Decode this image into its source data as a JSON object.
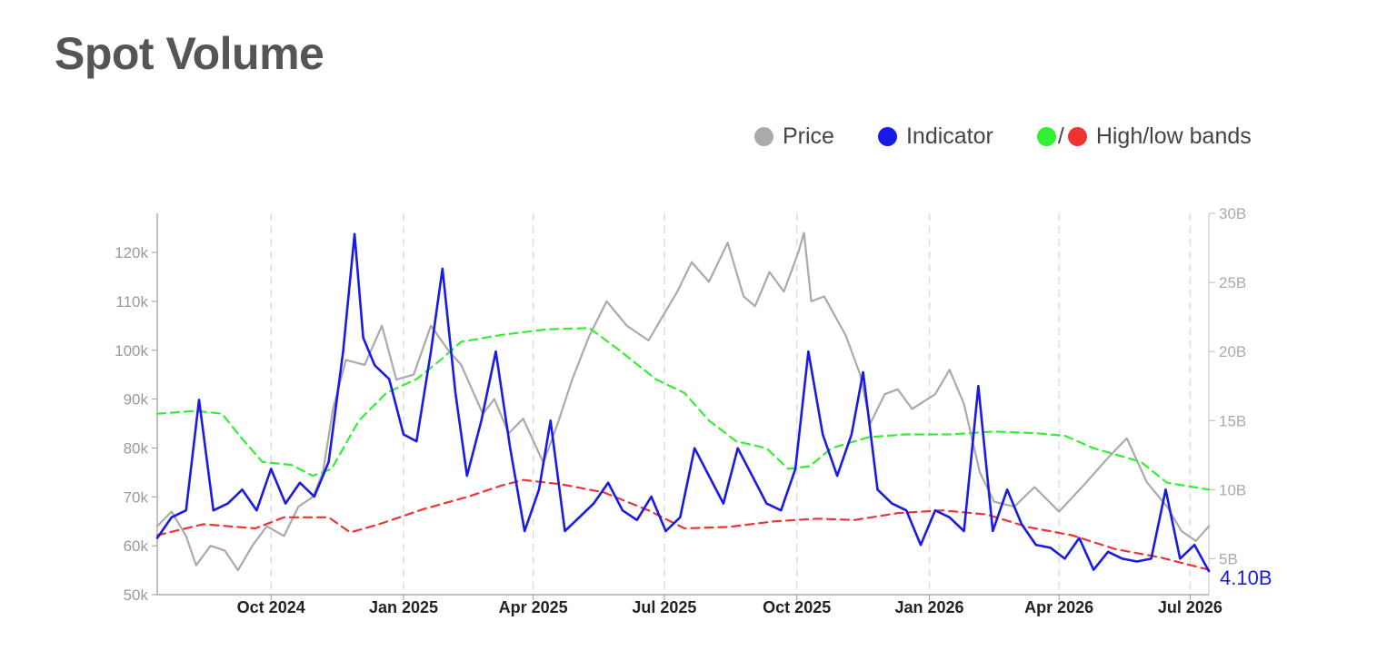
{
  "title": "Spot Volume",
  "legend": [
    {
      "label": "Price",
      "color": "#aaaaaa"
    },
    {
      "label": "Indicator",
      "color": "#1a1ae6"
    },
    {
      "label": "High/low bands",
      "colors": [
        "#33ee33",
        "#ee3333"
      ],
      "separator": "/"
    }
  ],
  "colors": {
    "price": "#aaaaaa",
    "indicator": "#1a1ae6",
    "high_band": "#33ee33",
    "low_band": "#ee3333",
    "grid": "#dddddd"
  },
  "chart_data": {
    "type": "line",
    "title": "Spot Volume",
    "x_range": [
      "2024-07-14",
      "2026-07-14"
    ],
    "x_ticks": [
      {
        "date": "2024-10-01",
        "label": "Oct 2024"
      },
      {
        "date": "2025-01-01",
        "label": "Jan 2025"
      },
      {
        "date": "2025-04-01",
        "label": "Apr 2025"
      },
      {
        "date": "2025-07-01",
        "label": "Jul 2025"
      },
      {
        "date": "2025-10-01",
        "label": "Oct 2025"
      },
      {
        "date": "2026-01-01",
        "label": "Jan 2026"
      },
      {
        "date": "2026-04-01",
        "label": "Apr 2026"
      },
      {
        "date": "2026-07-01",
        "label": "Jul 2026"
      }
    ],
    "left_axis": {
      "range": [
        50000,
        128000
      ],
      "ticks": [
        50000,
        60000,
        70000,
        80000,
        90000,
        100000,
        110000,
        120000
      ],
      "tick_labels": [
        "50k",
        "60k",
        "70k",
        "80k",
        "90k",
        "100k",
        "110k",
        "120k"
      ]
    },
    "right_axis": {
      "range": [
        2400000000,
        30000000000
      ],
      "ticks": [
        5000000000,
        10000000000,
        15000000000,
        20000000000,
        25000000000,
        30000000000
      ],
      "tick_labels": [
        "5B",
        "10B",
        "15B",
        "20B",
        "25B",
        "30B"
      ]
    },
    "vertical_grid": true,
    "horizontal_grid": false,
    "legend_position": "top-right",
    "last_value_label": "4.10B",
    "series": [
      {
        "name": "Price",
        "axis": "left",
        "color": "#aaaaaa",
        "style": "solid",
        "points": [
          [
            "2024-07-14",
            64000
          ],
          [
            "2024-07-24",
            67000
          ],
          [
            "2024-08-03",
            62000
          ],
          [
            "2024-08-10",
            56000
          ],
          [
            "2024-08-20",
            60000
          ],
          [
            "2024-08-30",
            59000
          ],
          [
            "2024-09-08",
            55000
          ],
          [
            "2024-09-18",
            60000
          ],
          [
            "2024-09-28",
            64000
          ],
          [
            "2024-10-10",
            62000
          ],
          [
            "2024-10-20",
            68000
          ],
          [
            "2024-10-30",
            70000
          ],
          [
            "2024-11-06",
            75000
          ],
          [
            "2024-11-13",
            88000
          ],
          [
            "2024-11-22",
            98000
          ],
          [
            "2024-12-05",
            97000
          ],
          [
            "2024-12-17",
            105000
          ],
          [
            "2024-12-27",
            94000
          ],
          [
            "2025-01-08",
            95000
          ],
          [
            "2025-01-20",
            105000
          ],
          [
            "2025-02-01",
            100000
          ],
          [
            "2025-02-10",
            97000
          ],
          [
            "2025-02-25",
            87000
          ],
          [
            "2025-03-05",
            90000
          ],
          [
            "2025-03-15",
            83000
          ],
          [
            "2025-03-25",
            86000
          ],
          [
            "2025-04-08",
            77000
          ],
          [
            "2025-04-18",
            85000
          ],
          [
            "2025-04-28",
            94000
          ],
          [
            "2025-05-10",
            103000
          ],
          [
            "2025-05-22",
            110000
          ],
          [
            "2025-06-05",
            105000
          ],
          [
            "2025-06-20",
            102000
          ],
          [
            "2025-06-30",
            107000
          ],
          [
            "2025-07-10",
            112000
          ],
          [
            "2025-07-20",
            118000
          ],
          [
            "2025-08-01",
            114000
          ],
          [
            "2025-08-14",
            122000
          ],
          [
            "2025-08-25",
            111000
          ],
          [
            "2025-09-02",
            109000
          ],
          [
            "2025-09-12",
            116000
          ],
          [
            "2025-09-22",
            112000
          ],
          [
            "2025-10-02",
            120000
          ],
          [
            "2025-10-06",
            124000
          ],
          [
            "2025-10-11",
            110000
          ],
          [
            "2025-10-20",
            111000
          ],
          [
            "2025-11-04",
            103000
          ],
          [
            "2025-11-14",
            95000
          ],
          [
            "2025-11-21",
            85000
          ],
          [
            "2025-12-01",
            91000
          ],
          [
            "2025-12-10",
            92000
          ],
          [
            "2025-12-20",
            88000
          ],
          [
            "2026-01-05",
            91000
          ],
          [
            "2026-01-15",
            96000
          ],
          [
            "2026-01-25",
            89000
          ],
          [
            "2026-02-05",
            75000
          ],
          [
            "2026-02-15",
            69000
          ],
          [
            "2026-03-01",
            68000
          ],
          [
            "2026-03-15",
            72000
          ],
          [
            "2026-04-01",
            67000
          ],
          [
            "2026-04-20",
            73000
          ],
          [
            "2026-05-05",
            78000
          ],
          [
            "2026-05-18",
            82000
          ],
          [
            "2026-06-01",
            73000
          ],
          [
            "2026-06-15",
            68000
          ],
          [
            "2026-06-25",
            63000
          ],
          [
            "2026-07-05",
            61000
          ],
          [
            "2026-07-14",
            64000
          ]
        ]
      },
      {
        "name": "Indicator",
        "axis": "right",
        "color": "#1a1ae6",
        "style": "solid",
        "points": [
          [
            "2024-07-14",
            6500000000
          ],
          [
            "2024-07-24",
            8000000000
          ],
          [
            "2024-08-03",
            8500000000
          ],
          [
            "2024-08-12",
            16500000000
          ],
          [
            "2024-08-22",
            8500000000
          ],
          [
            "2024-09-01",
            9000000000
          ],
          [
            "2024-09-11",
            10000000000
          ],
          [
            "2024-09-21",
            8500000000
          ],
          [
            "2024-10-01",
            11500000000
          ],
          [
            "2024-10-11",
            9000000000
          ],
          [
            "2024-10-21",
            10500000000
          ],
          [
            "2024-10-31",
            9500000000
          ],
          [
            "2024-11-10",
            12000000000
          ],
          [
            "2024-11-20",
            20000000000
          ],
          [
            "2024-11-28",
            28500000000
          ],
          [
            "2024-12-04",
            21000000000
          ],
          [
            "2024-12-12",
            19000000000
          ],
          [
            "2024-12-22",
            18000000000
          ],
          [
            "2025-01-01",
            14000000000
          ],
          [
            "2025-01-10",
            13500000000
          ],
          [
            "2025-01-20",
            20000000000
          ],
          [
            "2025-01-28",
            26000000000
          ],
          [
            "2025-02-06",
            17000000000
          ],
          [
            "2025-02-14",
            11000000000
          ],
          [
            "2025-02-24",
            15000000000
          ],
          [
            "2025-03-06",
            20000000000
          ],
          [
            "2025-03-16",
            13000000000
          ],
          [
            "2025-03-26",
            7000000000
          ],
          [
            "2025-04-05",
            10000000000
          ],
          [
            "2025-04-13",
            15000000000
          ],
          [
            "2025-04-23",
            7000000000
          ],
          [
            "2025-05-03",
            8000000000
          ],
          [
            "2025-05-13",
            9000000000
          ],
          [
            "2025-05-23",
            10500000000
          ],
          [
            "2025-06-02",
            8500000000
          ],
          [
            "2025-06-12",
            7800000000
          ],
          [
            "2025-06-22",
            9500000000
          ],
          [
            "2025-07-02",
            7000000000
          ],
          [
            "2025-07-12",
            8000000000
          ],
          [
            "2025-07-22",
            13000000000
          ],
          [
            "2025-08-01",
            11000000000
          ],
          [
            "2025-08-11",
            9000000000
          ],
          [
            "2025-08-21",
            13000000000
          ],
          [
            "2025-08-31",
            11000000000
          ],
          [
            "2025-09-10",
            9000000000
          ],
          [
            "2025-09-20",
            8500000000
          ],
          [
            "2025-09-30",
            11500000000
          ],
          [
            "2025-10-09",
            20000000000
          ],
          [
            "2025-10-19",
            14000000000
          ],
          [
            "2025-10-29",
            11000000000
          ],
          [
            "2025-11-08",
            14000000000
          ],
          [
            "2025-11-16",
            18500000000
          ],
          [
            "2025-11-26",
            10000000000
          ],
          [
            "2025-12-06",
            9000000000
          ],
          [
            "2025-12-16",
            8500000000
          ],
          [
            "2025-12-26",
            6000000000
          ],
          [
            "2026-01-05",
            8500000000
          ],
          [
            "2026-01-15",
            8000000000
          ],
          [
            "2026-01-25",
            7000000000
          ],
          [
            "2026-02-04",
            17500000000
          ],
          [
            "2026-02-14",
            7000000000
          ],
          [
            "2026-02-24",
            10000000000
          ],
          [
            "2026-03-06",
            7500000000
          ],
          [
            "2026-03-16",
            6000000000
          ],
          [
            "2026-03-26",
            5800000000
          ],
          [
            "2026-04-05",
            5000000000
          ],
          [
            "2026-04-15",
            6500000000
          ],
          [
            "2026-04-25",
            4200000000
          ],
          [
            "2026-05-05",
            5500000000
          ],
          [
            "2026-05-15",
            5000000000
          ],
          [
            "2026-05-25",
            4800000000
          ],
          [
            "2026-06-04",
            5000000000
          ],
          [
            "2026-06-14",
            10000000000
          ],
          [
            "2026-06-24",
            5000000000
          ],
          [
            "2026-07-04",
            6000000000
          ],
          [
            "2026-07-14",
            4100000000
          ]
        ]
      },
      {
        "name": "High band",
        "axis": "right",
        "color": "#33ee33",
        "style": "dashed",
        "points": [
          [
            "2024-07-14",
            15500000000
          ],
          [
            "2024-08-10",
            15700000000
          ],
          [
            "2024-08-28",
            15500000000
          ],
          [
            "2024-09-10",
            13800000000
          ],
          [
            "2024-09-25",
            12000000000
          ],
          [
            "2024-10-15",
            11800000000
          ],
          [
            "2024-10-30",
            11000000000
          ],
          [
            "2024-11-12",
            11500000000
          ],
          [
            "2024-12-01",
            15000000000
          ],
          [
            "2024-12-20",
            17000000000
          ],
          [
            "2025-01-10",
            18000000000
          ],
          [
            "2025-01-28",
            19500000000
          ],
          [
            "2025-02-10",
            20700000000
          ],
          [
            "2025-03-10",
            21200000000
          ],
          [
            "2025-04-10",
            21600000000
          ],
          [
            "2025-05-10",
            21700000000
          ],
          [
            "2025-06-01",
            20000000000
          ],
          [
            "2025-06-25",
            18000000000
          ],
          [
            "2025-07-15",
            17000000000
          ],
          [
            "2025-08-01",
            15000000000
          ],
          [
            "2025-08-20",
            13500000000
          ],
          [
            "2025-09-10",
            13000000000
          ],
          [
            "2025-09-25",
            11500000000
          ],
          [
            "2025-10-10",
            11700000000
          ],
          [
            "2025-10-25",
            13000000000
          ],
          [
            "2025-11-20",
            13800000000
          ],
          [
            "2025-12-15",
            14000000000
          ],
          [
            "2026-01-15",
            14000000000
          ],
          [
            "2026-02-15",
            14200000000
          ],
          [
            "2026-03-15",
            14100000000
          ],
          [
            "2026-04-05",
            13900000000
          ],
          [
            "2026-04-25",
            13000000000
          ],
          [
            "2026-05-15",
            12400000000
          ],
          [
            "2026-05-28",
            12000000000
          ],
          [
            "2026-06-15",
            10500000000
          ],
          [
            "2026-07-14",
            10000000000
          ]
        ]
      },
      {
        "name": "Low band",
        "axis": "right",
        "color": "#ee3333",
        "style": "dashed",
        "points": [
          [
            "2024-07-14",
            6700000000
          ],
          [
            "2024-08-15",
            7500000000
          ],
          [
            "2024-09-20",
            7200000000
          ],
          [
            "2024-10-10",
            8000000000
          ],
          [
            "2024-11-10",
            8000000000
          ],
          [
            "2024-11-25",
            6900000000
          ],
          [
            "2024-12-15",
            7500000000
          ],
          [
            "2025-01-15",
            8600000000
          ],
          [
            "2025-02-15",
            9500000000
          ],
          [
            "2025-03-10",
            10300000000
          ],
          [
            "2025-03-25",
            10700000000
          ],
          [
            "2025-04-20",
            10400000000
          ],
          [
            "2025-05-20",
            9800000000
          ],
          [
            "2025-06-20",
            8500000000
          ],
          [
            "2025-07-15",
            7200000000
          ],
          [
            "2025-08-15",
            7300000000
          ],
          [
            "2025-09-15",
            7700000000
          ],
          [
            "2025-10-15",
            7900000000
          ],
          [
            "2025-11-10",
            7800000000
          ],
          [
            "2025-12-10",
            8300000000
          ],
          [
            "2026-01-10",
            8500000000
          ],
          [
            "2026-02-10",
            8200000000
          ],
          [
            "2026-03-10",
            7300000000
          ],
          [
            "2026-04-10",
            6700000000
          ],
          [
            "2026-05-10",
            5700000000
          ],
          [
            "2026-06-10",
            5100000000
          ],
          [
            "2026-07-14",
            4200000000
          ]
        ]
      }
    ]
  }
}
